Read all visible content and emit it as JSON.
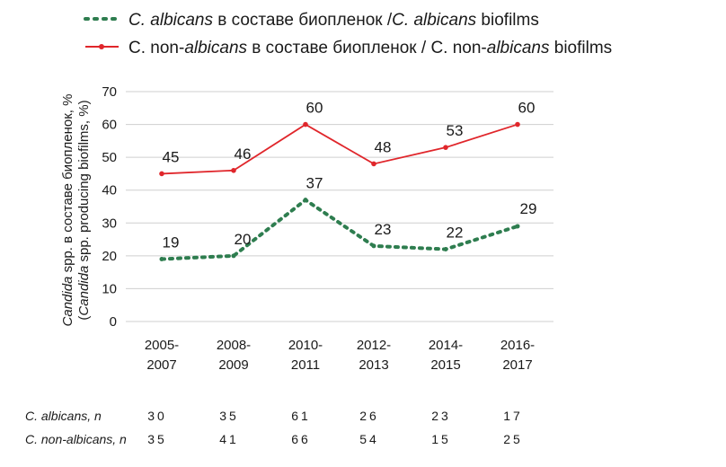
{
  "legend": {
    "albicans": {
      "prefix": "C.",
      "italic": "albicans",
      "mid": " в составе биопленок /",
      "prefix2": "C.",
      "italic2": "albicans",
      "suffix": " biofilms"
    },
    "non_albicans": {
      "prefix": "C. non-",
      "italic": "albicans",
      "mid": " в составе биопленок / C. non-",
      "italic2": "albicans",
      "suffix": " biofilms"
    }
  },
  "colors": {
    "albicans": "#2e7d4f",
    "non_albicans": "#e0262b",
    "grid": "#cfcfcf"
  },
  "chart_data": {
    "type": "line",
    "title": "",
    "ylabel_line1_italic": "Candida",
    "ylabel_line1_rest": " spp. в составе биопленок, %",
    "ylabel_line2_pre": "(",
    "ylabel_line2_italic": "Candida",
    "ylabel_line2_rest": " spp. producing biofilms, %)",
    "ylim": [
      0,
      70
    ],
    "yticks": [
      "0",
      "10",
      "20",
      "30",
      "40",
      "50",
      "60",
      "70"
    ],
    "categories": [
      [
        "2005-",
        "2007"
      ],
      [
        "2008-",
        "2009"
      ],
      [
        "2010-",
        "2011"
      ],
      [
        "2012-",
        "2013"
      ],
      [
        "2014-",
        "2015"
      ],
      [
        "2016-",
        "2017"
      ]
    ],
    "grid": "horizontal",
    "legend_position": "top",
    "series": [
      {
        "key": "albicans",
        "style": "dotted",
        "values": [
          19,
          20,
          37,
          23,
          22,
          29
        ],
        "labels": [
          "19",
          "20",
          "37",
          "23",
          "22",
          "29"
        ]
      },
      {
        "key": "non_albicans",
        "style": "solid",
        "values": [
          45,
          46,
          60,
          48,
          53,
          60
        ],
        "labels": [
          "45",
          "46",
          "60",
          "48",
          "53",
          "60"
        ]
      }
    ]
  },
  "table": {
    "rows": [
      {
        "label_italic": "C. albicans, n",
        "values": [
          "30",
          "35",
          "61",
          "26",
          "23",
          "17"
        ]
      },
      {
        "label_italic": "C. non-albicans, n",
        "values": [
          "35",
          "41",
          "66",
          "54",
          "15",
          "25"
        ]
      }
    ]
  }
}
